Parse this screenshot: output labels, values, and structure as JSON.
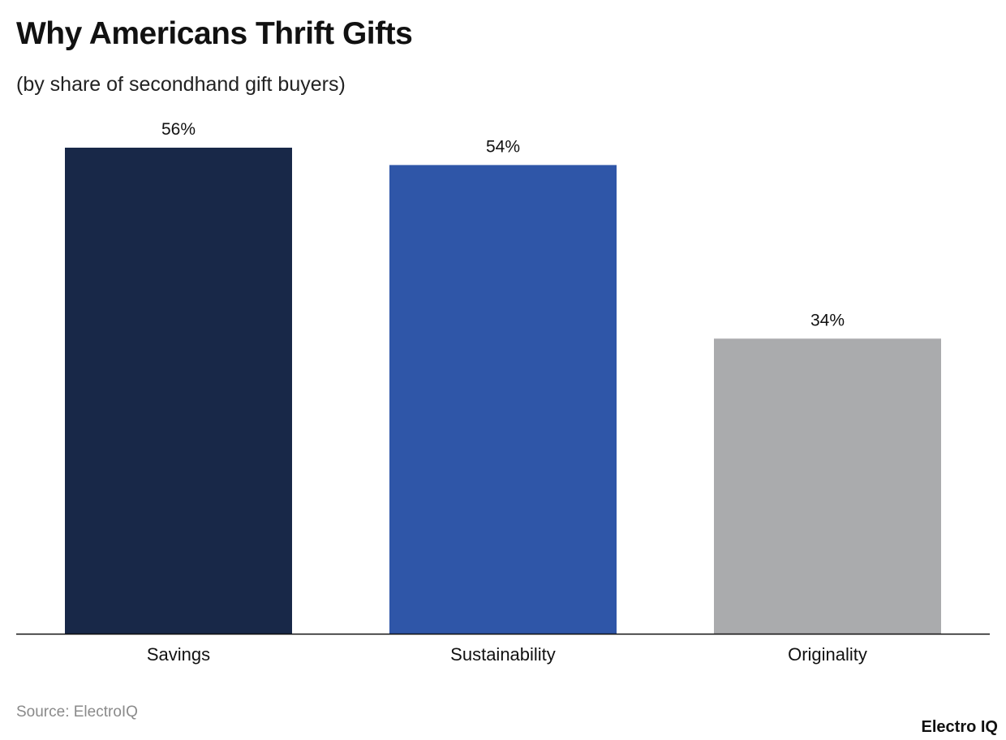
{
  "chart_data": {
    "type": "bar",
    "title": "Why Americans Thrift Gifts",
    "subtitle": "(by share of secondhand gift buyers)",
    "categories": [
      "Savings",
      "Sustainability",
      "Originality"
    ],
    "values": [
      56,
      54,
      34
    ],
    "data_labels": [
      "56%",
      "54%",
      "34%"
    ],
    "colors": [
      "#182848",
      "#2f56a8",
      "#aaabad"
    ],
    "xlabel": "",
    "ylabel": "",
    "ylim": [
      0,
      56
    ],
    "grid": false,
    "legend": "none"
  },
  "footer": {
    "source": "Source: ElectroIQ",
    "logo": "Electro IQ"
  }
}
